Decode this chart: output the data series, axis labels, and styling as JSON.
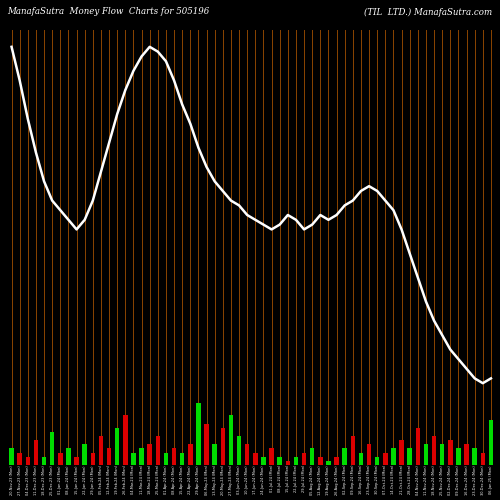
{
  "title_left": "ManafaSutra  Money Flow  Charts for 505196",
  "title_right": "(TIL  LTD.) ManafaSutra.com",
  "background_color": "#000000",
  "line_color": "#ffffff",
  "bar_positive_color": "#00dd00",
  "bar_negative_color": "#dd0000",
  "vline_color": "#8B4500",
  "n_bars": 60,
  "price_line": [
    100,
    93,
    85,
    78,
    72,
    68,
    66,
    64,
    62,
    64,
    68,
    74,
    80,
    86,
    91,
    95,
    98,
    100,
    99,
    97,
    93,
    88,
    84,
    79,
    75,
    72,
    70,
    68,
    67,
    65,
    64,
    63,
    62,
    63,
    65,
    64,
    62,
    63,
    65,
    64,
    65,
    67,
    68,
    70,
    71,
    70,
    68,
    66,
    62,
    57,
    52,
    47,
    43,
    40,
    37,
    35,
    33,
    31,
    30,
    31
  ],
  "bar_heights": [
    4,
    3,
    2,
    6,
    2,
    8,
    3,
    4,
    2,
    5,
    3,
    7,
    4,
    9,
    12,
    3,
    4,
    5,
    7,
    3,
    4,
    3,
    5,
    15,
    10,
    5,
    9,
    12,
    7,
    5,
    3,
    2,
    4,
    2,
    1,
    2,
    3,
    4,
    2,
    1,
    2,
    4,
    7,
    3,
    5,
    2,
    3,
    4,
    6,
    4,
    9,
    5,
    7,
    5,
    6,
    4,
    5,
    4,
    3,
    11
  ],
  "bar_colors": [
    "g",
    "r",
    "r",
    "r",
    "g",
    "g",
    "r",
    "g",
    "r",
    "g",
    "r",
    "r",
    "r",
    "g",
    "r",
    "g",
    "g",
    "r",
    "r",
    "g",
    "r",
    "g",
    "r",
    "g",
    "r",
    "g",
    "r",
    "g",
    "g",
    "r",
    "r",
    "g",
    "r",
    "g",
    "r",
    "g",
    "r",
    "g",
    "r",
    "g",
    "r",
    "g",
    "r",
    "g",
    "r",
    "g",
    "r",
    "g",
    "r",
    "g",
    "r",
    "g",
    "r",
    "g",
    "r",
    "g",
    "r",
    "g",
    "r",
    "g"
  ],
  "xlabels": [
    "20-Nov-23 (Mon)",
    "27-Nov-23 (Mon)",
    "04-Dec-23 (Mon)",
    "11-Dec-23 (Mon)",
    "18-Dec-23 (Mon)",
    "25-Dec-23 (Mon)",
    "01-Jan-24 (Mon)",
    "08-Jan-24 (Mon)",
    "15-Jan-24 (Mon)",
    "22-Jan-24 (Mon)",
    "29-Jan-24 (Mon)",
    "05-Feb-24 (Mon)",
    "12-Feb-24 (Mon)",
    "19-Feb-24 (Mon)",
    "26-Feb-24 (Mon)",
    "04-Mar-24 (Mon)",
    "11-Mar-24 (Mon)",
    "18-Mar-24 (Mon)",
    "25-Mar-24 (Mon)",
    "01-Apr-24 (Mon)",
    "08-Apr-24 (Mon)",
    "15-Apr-24 (Mon)",
    "22-Apr-24 (Mon)",
    "29-Apr-24 (Mon)",
    "06-May-24 (Mon)",
    "13-May-24 (Mon)",
    "20-May-24 (Mon)",
    "27-May-24 (Mon)",
    "03-Jun-24 (Mon)",
    "10-Jun-24 (Mon)",
    "17-Jun-24 (Mon)",
    "24-Jun-24 (Mon)",
    "01-Jul-24 (Mon)",
    "08-Jul-24 (Mon)",
    "15-Jul-24 (Mon)",
    "22-Jul-24 (Mon)",
    "29-Jul-24 (Mon)",
    "05-Aug-24 (Mon)",
    "12-Aug-24 (Mon)",
    "19-Aug-24 (Mon)",
    "26-Aug-24 (Mon)",
    "02-Sep-24 (Mon)",
    "09-Sep-24 (Mon)",
    "16-Sep-24 (Mon)",
    "23-Sep-24 (Mon)",
    "30-Sep-24 (Mon)",
    "07-Oct-24 (Mon)",
    "14-Oct-24 (Mon)",
    "21-Oct-24 (Mon)",
    "28-Oct-24 (Mon)",
    "04-Nov-24 (Mon)",
    "11-Nov-24 (Mon)",
    "18-Nov-24 (Mon)",
    "25-Nov-24 (Mon)",
    "02-Dec-24 (Mon)",
    "09-Dec-24 (Mon)",
    "16-Dec-24 (Mon)",
    "23-Dec-24 (Mon)",
    "30-Dec-24 (Mon)",
    "06-Jan-25 (Mon)"
  ]
}
